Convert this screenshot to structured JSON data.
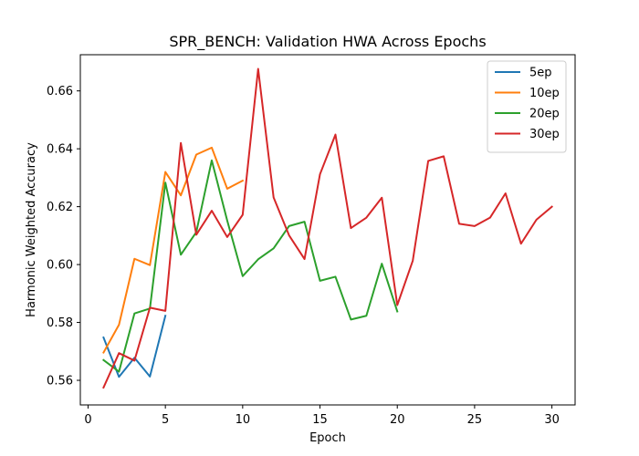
{
  "chart_data": {
    "type": "line",
    "title": "SPR_BENCH: Validation HWA Across Epochs",
    "xlabel": "Epoch",
    "ylabel": "Harmonic Weighted Accuracy",
    "xlim": [
      -0.5,
      31.5
    ],
    "ylim": [
      0.5515,
      0.6725
    ],
    "xticks": [
      0,
      5,
      10,
      15,
      20,
      25,
      30
    ],
    "yticks": [
      0.56,
      0.58,
      0.6,
      0.62,
      0.64,
      0.66
    ],
    "ytick_labels": [
      "0.56",
      "0.58",
      "0.60",
      "0.62",
      "0.64",
      "0.66"
    ],
    "grid": false,
    "legend_position": "top-right",
    "series": [
      {
        "name": "5ep",
        "color": "#1f77b4",
        "x": [
          1,
          2,
          3,
          4,
          5
        ],
        "y": [
          0.5748,
          0.5612,
          0.5678,
          0.5613,
          0.5823
        ]
      },
      {
        "name": "10ep",
        "color": "#ff7f0e",
        "x": [
          1,
          2,
          3,
          4,
          5,
          6,
          7,
          8,
          9,
          10
        ],
        "y": [
          0.5696,
          0.5792,
          0.602,
          0.5998,
          0.632,
          0.6239,
          0.638,
          0.6404,
          0.6262,
          0.629
        ]
      },
      {
        "name": "20ep",
        "color": "#2ca02c",
        "x": [
          1,
          2,
          3,
          4,
          5,
          6,
          7,
          8,
          9,
          10,
          11,
          12,
          13,
          14,
          15,
          16,
          17,
          18,
          19,
          20
        ],
        "y": [
          0.567,
          0.563,
          0.5831,
          0.5848,
          0.6283,
          0.6034,
          0.6112,
          0.636,
          0.6152,
          0.596,
          0.6018,
          0.6056,
          0.6133,
          0.6148,
          0.5944,
          0.5958,
          0.581,
          0.5823,
          0.6003,
          0.5838
        ]
      },
      {
        "name": "30ep",
        "color": "#d62728",
        "x": [
          1,
          2,
          3,
          4,
          5,
          6,
          7,
          8,
          9,
          10,
          11,
          12,
          13,
          14,
          15,
          16,
          17,
          18,
          19,
          20,
          21,
          22,
          23,
          24,
          25,
          26,
          27,
          28,
          29,
          30
        ],
        "y": [
          0.5575,
          0.5694,
          0.5668,
          0.5851,
          0.584,
          0.642,
          0.6103,
          0.6186,
          0.6095,
          0.6172,
          0.6676,
          0.6232,
          0.6101,
          0.6019,
          0.6312,
          0.6449,
          0.6126,
          0.6162,
          0.6231,
          0.586,
          0.6013,
          0.6358,
          0.6374,
          0.6141,
          0.6133,
          0.6162,
          0.6246,
          0.6072,
          0.6155,
          0.62
        ]
      }
    ]
  }
}
